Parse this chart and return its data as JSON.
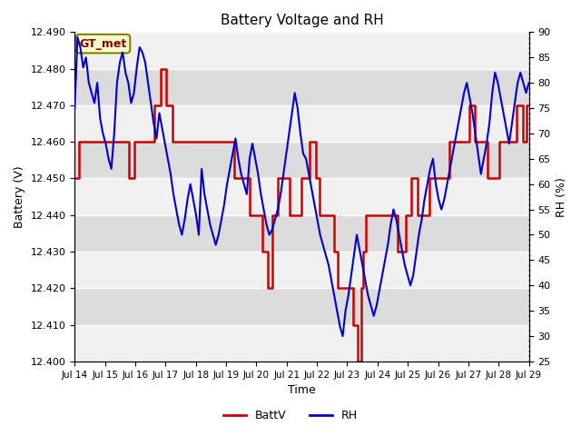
{
  "title": "Battery Voltage and RH",
  "xlabel": "Time",
  "ylabel_left": "Battery (V)",
  "ylabel_right": "RH (%)",
  "annotation": "GT_met",
  "ylim_left": [
    12.4,
    12.49
  ],
  "ylim_right": [
    25,
    90
  ],
  "yticks_left": [
    12.4,
    12.41,
    12.42,
    12.43,
    12.44,
    12.45,
    12.46,
    12.47,
    12.48,
    12.49
  ],
  "yticks_right": [
    25,
    30,
    35,
    40,
    45,
    50,
    55,
    60,
    65,
    70,
    75,
    80,
    85,
    90
  ],
  "x_tick_labels": [
    "Jul 14",
    "Jul 15",
    "Jul 16",
    "Jul 17",
    "Jul 18",
    "Jul 19",
    "Jul 20",
    "Jul 21",
    "Jul 22",
    "Jul 23",
    "Jul 24",
    "Jul 25",
    "Jul 26",
    "Jul 27",
    "Jul 28",
    "Jul 29"
  ],
  "background_color": "#ffffff",
  "plot_bg_light": "#f0f0f0",
  "plot_bg_dark": "#dcdcdc",
  "grid_color": "#ffffff",
  "batt_color": "#cc0000",
  "rh_color": "#0000cc",
  "legend_batt": "BattV",
  "legend_rh": "RH",
  "batt_data": [
    12.45,
    12.45,
    12.46,
    12.46,
    12.46,
    12.46,
    12.46,
    12.46,
    12.46,
    12.46,
    12.46,
    12.46,
    12.46,
    12.46,
    12.46,
    12.46,
    12.46,
    12.46,
    12.46,
    12.46,
    12.46,
    12.46,
    12.46,
    12.46,
    12.46,
    12.46,
    12.46,
    12.45,
    12.45,
    12.45,
    12.46,
    12.46,
    12.46,
    12.46,
    12.46,
    12.46,
    12.46,
    12.46,
    12.46,
    12.46,
    12.47,
    12.47,
    12.47,
    12.48,
    12.48,
    12.48,
    12.47,
    12.47,
    12.47,
    12.46,
    12.46,
    12.46,
    12.46,
    12.46,
    12.46,
    12.46,
    12.46,
    12.46,
    12.46,
    12.46,
    12.46,
    12.46,
    12.46,
    12.46,
    12.46,
    12.46,
    12.46,
    12.46,
    12.46,
    12.46,
    12.46,
    12.46,
    12.46,
    12.46,
    12.46,
    12.46,
    12.46,
    12.46,
    12.46,
    12.46,
    12.45,
    12.45,
    12.45,
    12.45,
    12.45,
    12.45,
    12.45,
    12.45,
    12.44,
    12.44,
    12.44,
    12.44,
    12.44,
    12.44,
    12.43,
    12.43,
    12.43,
    12.42,
    12.42,
    12.44,
    12.44,
    12.44,
    12.45,
    12.45,
    12.45,
    12.45,
    12.45,
    12.45,
    12.44,
    12.44,
    12.44,
    12.44,
    12.44,
    12.44,
    12.45,
    12.45,
    12.45,
    12.45,
    12.46,
    12.46,
    12.46,
    12.45,
    12.45,
    12.44,
    12.44,
    12.44,
    12.44,
    12.44,
    12.44,
    12.44,
    12.43,
    12.43,
    12.42,
    12.42,
    12.42,
    12.42,
    12.42,
    12.42,
    12.42,
    12.42,
    12.41,
    12.41,
    12.4,
    12.4,
    12.42,
    12.43,
    12.44,
    12.44,
    12.44,
    12.44,
    12.44,
    12.44,
    12.44,
    12.44,
    12.44,
    12.44,
    12.44,
    12.44,
    12.44,
    12.44,
    12.44,
    12.44,
    12.43,
    12.43,
    12.43,
    12.43,
    12.44,
    12.44,
    12.44,
    12.45,
    12.45,
    12.45,
    12.44,
    12.44,
    12.44,
    12.44,
    12.44,
    12.44,
    12.45,
    12.45,
    12.45,
    12.45,
    12.45,
    12.45,
    12.45,
    12.45,
    12.45,
    12.45,
    12.46,
    12.46,
    12.46,
    12.46,
    12.46,
    12.46,
    12.46,
    12.46,
    12.46,
    12.46,
    12.47,
    12.47,
    12.47,
    12.46,
    12.46,
    12.46,
    12.46,
    12.46,
    12.46,
    12.45,
    12.45,
    12.45,
    12.45,
    12.45,
    12.45,
    12.46,
    12.46,
    12.46,
    12.46,
    12.46,
    12.46,
    12.46,
    12.46,
    12.46,
    12.47,
    12.47,
    12.47,
    12.46,
    12.46,
    12.47,
    12.47
  ],
  "rh_data": [
    75,
    89,
    87,
    83,
    85,
    80,
    78,
    76,
    80,
    73,
    70,
    68,
    65,
    63,
    70,
    80,
    84,
    86,
    82,
    80,
    76,
    78,
    83,
    87,
    86,
    84,
    80,
    76,
    72,
    69,
    74,
    71,
    68,
    65,
    62,
    58,
    55,
    52,
    50,
    53,
    57,
    60,
    57,
    54,
    50,
    63,
    58,
    55,
    52,
    50,
    48,
    50,
    53,
    56,
    60,
    63,
    66,
    69,
    65,
    62,
    60,
    58,
    65,
    68,
    65,
    62,
    58,
    55,
    52,
    50,
    51,
    53,
    55,
    58,
    62,
    66,
    70,
    74,
    78,
    75,
    70,
    66,
    65,
    62,
    59,
    56,
    53,
    50,
    48,
    46,
    44,
    41,
    38,
    35,
    32,
    30,
    35,
    38,
    42,
    46,
    50,
    47,
    44,
    41,
    38,
    36,
    34,
    36,
    39,
    42,
    45,
    48,
    52,
    55,
    53,
    50,
    47,
    44,
    42,
    40,
    42,
    46,
    50,
    53,
    57,
    60,
    63,
    65,
    60,
    57,
    55,
    57,
    60,
    63,
    66,
    69,
    72,
    75,
    78,
    80,
    77,
    74,
    70,
    66,
    62,
    65,
    68,
    72,
    78,
    82,
    80,
    77,
    74,
    71,
    68,
    72,
    76,
    80,
    82,
    80,
    78,
    80
  ]
}
